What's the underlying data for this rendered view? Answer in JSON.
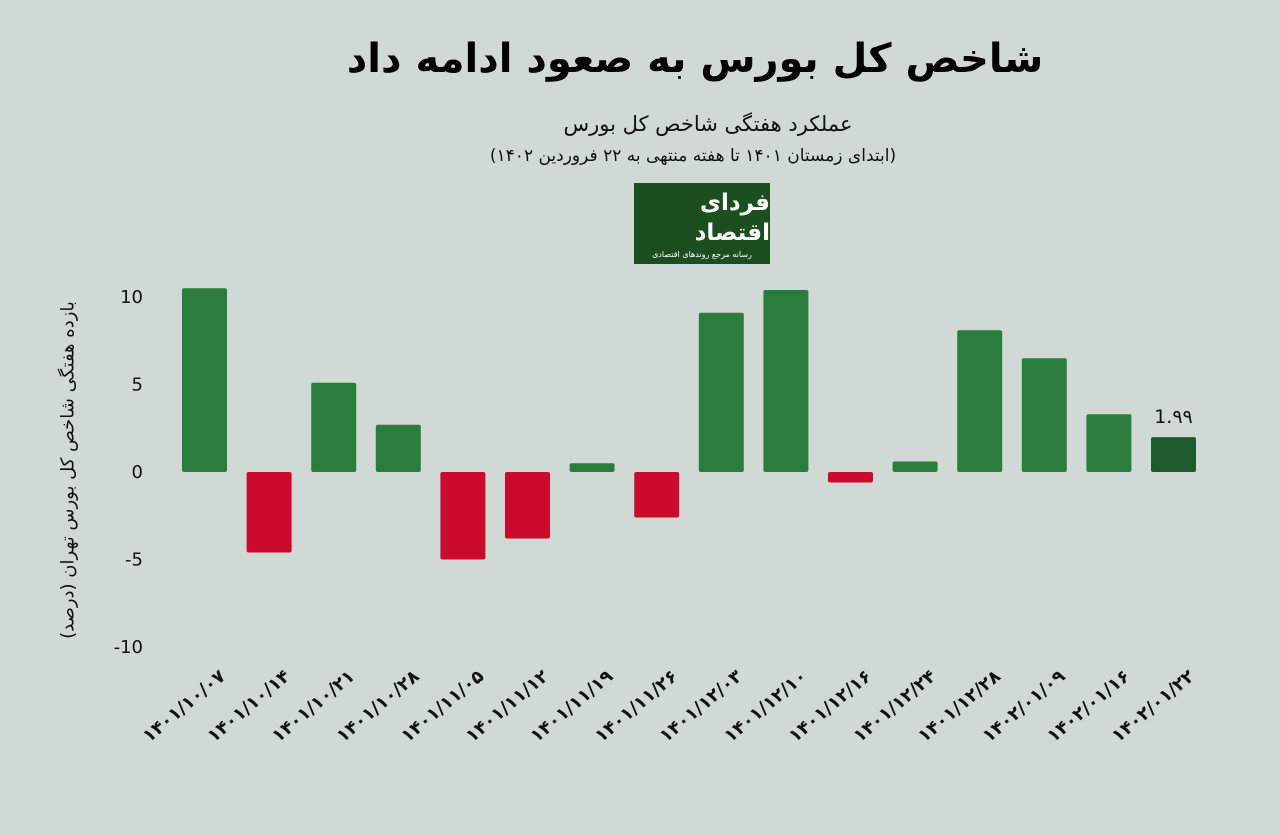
{
  "title": "شاخص کل بورس به صعود ادامه داد",
  "subtitle": "عملکرد هفتگی شاخص کل بورس",
  "note": "(ابتدای زمستان ۱۴۰۱ تا هفته منتهی به ۲۲ فروردین ۱۴۰۲)",
  "logo": {
    "name": "فردای اقتصاد",
    "tagline": "رسانه مرجع روندهای اقتصادی",
    "color": "#1b4f1f"
  },
  "colors": {
    "positive": "#2b7d3e",
    "negative": "#cc0a2e",
    "highlight": "#1f5a2f",
    "background": "#d0d9d5"
  },
  "chart_data": {
    "type": "bar",
    "title": "شاخص کل بورس به صعود ادامه داد",
    "subtitle": "عملکرد هفتگی شاخص کل بورس",
    "ylabel": "بازده هفتگی شاخص کل بورس تهران (درصد)",
    "xlabel": "",
    "ylim": [
      -10,
      10
    ],
    "yticks": [
      10,
      5,
      0,
      -5,
      -10
    ],
    "ytick_labels": [
      "10",
      "5",
      "0",
      "-5",
      "-10"
    ],
    "categories": [
      "۱۴۰۱/۱۰/۰۷",
      "۱۴۰۱/۱۰/۱۴",
      "۱۴۰۱/۱۰/۲۱",
      "۱۴۰۱/۱۰/۲۸",
      "۱۴۰۱/۱۱/۰۵",
      "۱۴۰۱/۱۱/۱۲",
      "۱۴۰۱/۱۱/۱۹",
      "۱۴۰۱/۱۱/۲۶",
      "۱۴۰۱/۱۲/۰۳",
      "۱۴۰۱/۱۲/۱۰",
      "۱۴۰۱/۱۲/۱۶",
      "۱۴۰۱/۱۲/۲۴",
      "۱۴۰۱/۱۲/۲۸",
      "۱۴۰۲/۰۱/۰۹",
      "۱۴۰۲/۰۱/۱۶",
      "۱۴۰۲/۰۱/۲۲"
    ],
    "values": [
      10.5,
      -4.6,
      5.1,
      2.7,
      -5.0,
      -3.8,
      0.5,
      -2.6,
      9.1,
      10.4,
      -0.6,
      0.6,
      8.1,
      6.5,
      3.3,
      1.99
    ],
    "data_labels": [
      {
        "index": 15,
        "text": "1.۹۹"
      }
    ],
    "grid": false,
    "legend": "none"
  }
}
